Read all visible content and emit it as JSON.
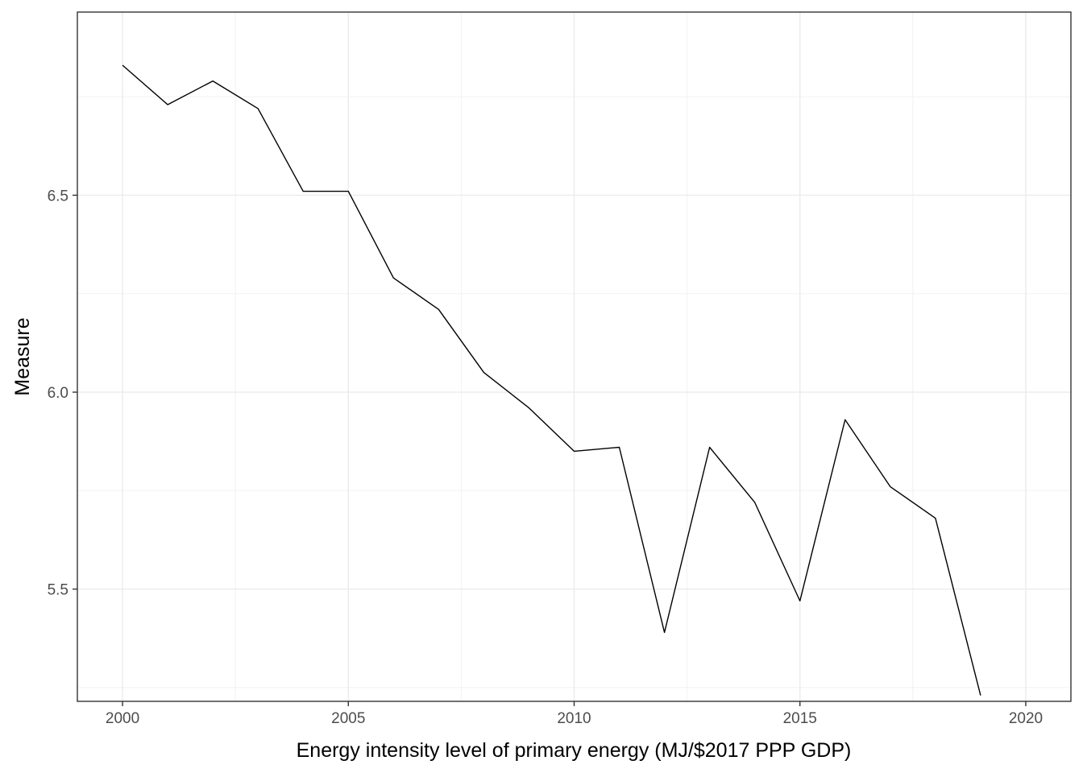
{
  "chart_data": {
    "type": "line",
    "title": "",
    "xlabel": "Energy intensity level of primary energy (MJ/$2017 PPP GDP)",
    "ylabel": "Measure",
    "xlim": [
      1999,
      2021
    ],
    "ylim": [
      5.215,
      6.965
    ],
    "x_ticks": [
      2000,
      2005,
      2010,
      2015,
      2020
    ],
    "x_tick_labels": [
      "2000",
      "2005",
      "2010",
      "2015",
      "2020"
    ],
    "y_ticks": [
      5.5,
      6.0,
      6.5
    ],
    "y_tick_labels": [
      "5.5",
      "6.0",
      "6.5"
    ],
    "grid": true,
    "legend": "none",
    "series": [
      {
        "color": "#000000",
        "x": [
          2000,
          2001,
          2002,
          2003,
          2004,
          2005,
          2006,
          2007,
          2008,
          2009,
          2010,
          2011,
          2012,
          2013,
          2014,
          2015,
          2016,
          2017,
          2018,
          2019
        ],
        "values": [
          6.83,
          6.73,
          6.79,
          6.72,
          6.51,
          6.51,
          6.29,
          6.21,
          6.05,
          5.96,
          5.85,
          5.86,
          5.39,
          5.86,
          5.72,
          5.47,
          5.93,
          5.76,
          5.68,
          5.23
        ]
      }
    ]
  }
}
